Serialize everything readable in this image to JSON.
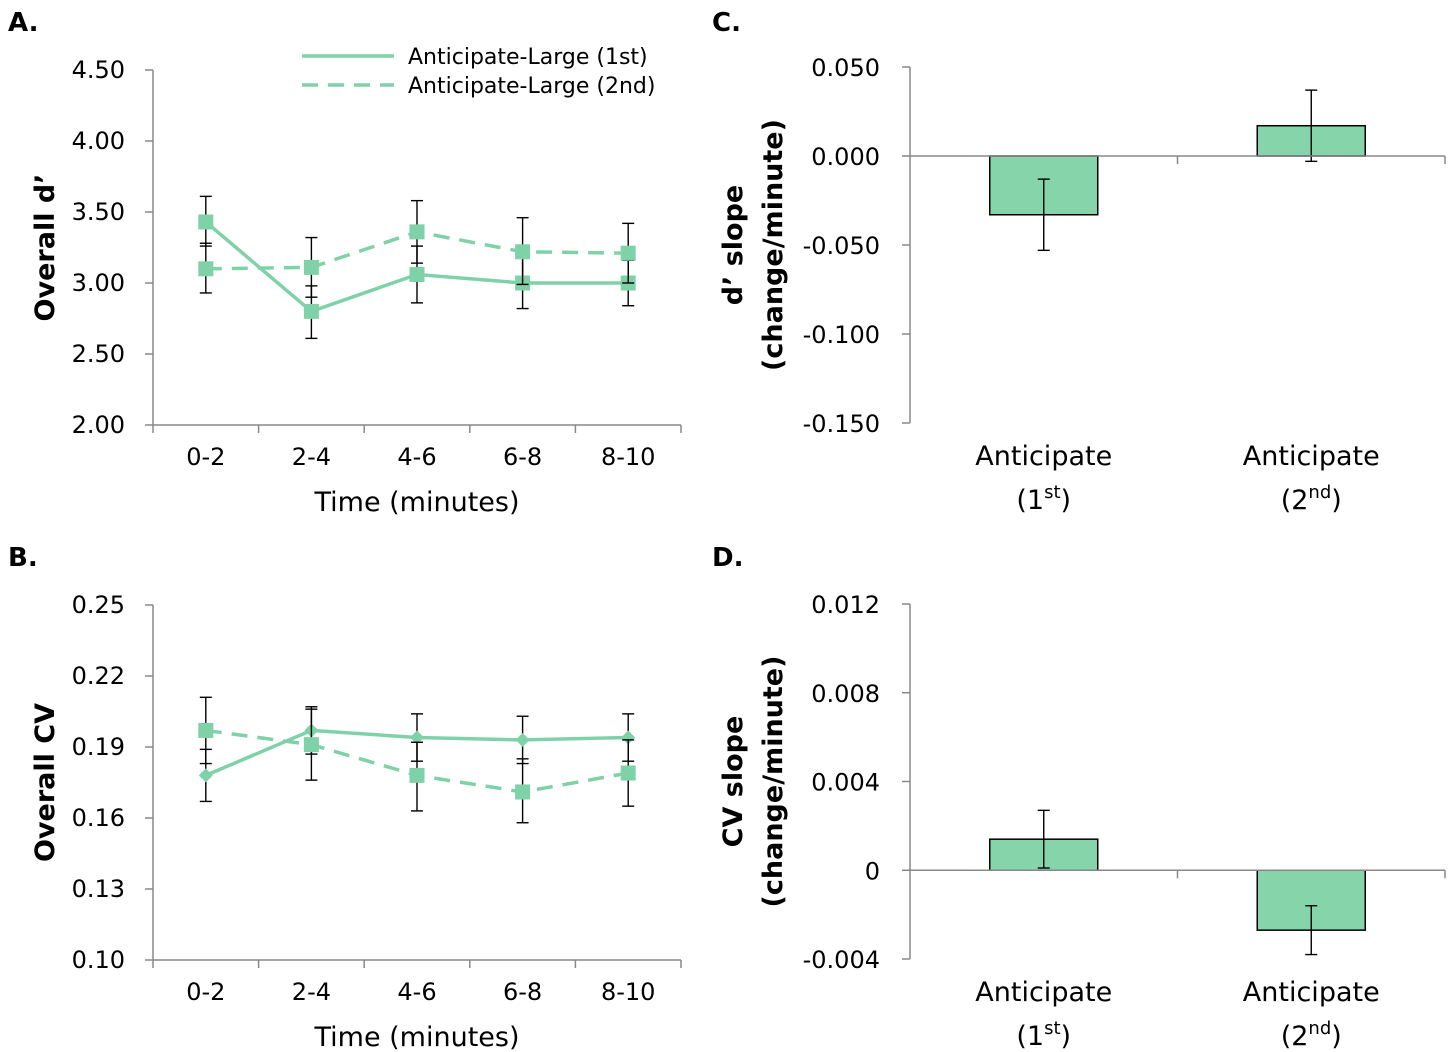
{
  "panels": {
    "a": "A.",
    "b": "B.",
    "c": "C.",
    "d": "D."
  },
  "colors": {
    "series": "#7fd1a8",
    "bar_fill": "#86d4aa",
    "axis": "#888888",
    "error": "#000000"
  },
  "chart_data": [
    {
      "id": "A",
      "type": "line",
      "categories": [
        "0-2",
        "2-4",
        "4-6",
        "6-8",
        "8-10"
      ],
      "xlabel": "Time (minutes)",
      "ylabel": "Overall d’",
      "ylim": [
        2.0,
        4.5
      ],
      "yticks": [
        "2.00",
        "2.50",
        "3.00",
        "3.50",
        "4.00",
        "4.50"
      ],
      "legend": "top-right",
      "series": [
        {
          "name": "Anticipate-Large (1st)",
          "dash": "solid",
          "marker": "square",
          "values": [
            3.43,
            2.8,
            3.06,
            3.0,
            3.0
          ],
          "err_low": [
            3.26,
            2.61,
            2.86,
            2.82,
            2.84
          ],
          "err_high": [
            3.61,
            2.98,
            3.26,
            3.18,
            3.16
          ]
        },
        {
          "name": "Anticipate-Large (2nd)",
          "dash": "dashed",
          "marker": "square",
          "values": [
            3.1,
            3.11,
            3.36,
            3.22,
            3.21
          ],
          "err_low": [
            2.93,
            2.9,
            3.14,
            2.99,
            3.0
          ],
          "err_high": [
            3.28,
            3.32,
            3.58,
            3.46,
            3.42
          ]
        }
      ]
    },
    {
      "id": "B",
      "type": "line",
      "categories": [
        "0-2",
        "2-4",
        "4-6",
        "6-8",
        "8-10"
      ],
      "xlabel": "Time (minutes)",
      "ylabel": "Overall CV",
      "ylim": [
        0.1,
        0.25
      ],
      "yticks": [
        "0.10",
        "0.13",
        "0.16",
        "0.19",
        "0.22",
        "0.25"
      ],
      "series": [
        {
          "name": "Anticipate-Large (1st)",
          "dash": "solid",
          "marker": "diamond",
          "values": [
            0.178,
            0.197,
            0.194,
            0.193,
            0.194
          ],
          "err_low": [
            0.167,
            0.187,
            0.184,
            0.183,
            0.184
          ],
          "err_high": [
            0.189,
            0.207,
            0.204,
            0.203,
            0.204
          ]
        },
        {
          "name": "Anticipate-Large (2nd)",
          "dash": "dashed",
          "marker": "square",
          "values": [
            0.197,
            0.191,
            0.178,
            0.171,
            0.179
          ],
          "err_low": [
            0.183,
            0.176,
            0.163,
            0.158,
            0.165
          ],
          "err_high": [
            0.211,
            0.206,
            0.192,
            0.185,
            0.193
          ]
        }
      ]
    },
    {
      "id": "C",
      "type": "bar",
      "ylabel_lines": [
        "d’ slope",
        "(change/minute)"
      ],
      "ylim": [
        -0.15,
        0.05
      ],
      "yticks": [
        "-0.150",
        "-0.100",
        "-0.050",
        "0.000",
        "0.050"
      ],
      "bars": [
        {
          "name": "Anticipate",
          "sup": "st",
          "num": "1",
          "value": -0.033,
          "err_low": -0.053,
          "err_high": -0.013
        },
        {
          "name": "Anticipate",
          "sup": "nd",
          "num": "2",
          "value": 0.017,
          "err_low": -0.003,
          "err_high": 0.037
        }
      ]
    },
    {
      "id": "D",
      "type": "bar",
      "ylabel_lines": [
        "CV slope",
        "(change/minute)"
      ],
      "ylim": [
        -0.004,
        0.012
      ],
      "yticks": [
        "-0.004",
        "0",
        "0.004",
        "0.008",
        "0.012"
      ],
      "bars": [
        {
          "name": "Anticipate",
          "sup": "st",
          "num": "1",
          "value": 0.0014,
          "err_low": 0.0001,
          "err_high": 0.0027
        },
        {
          "name": "Anticipate",
          "sup": "nd",
          "num": "2",
          "value": -0.0027,
          "err_low": -0.0038,
          "err_high": -0.0016
        }
      ]
    }
  ]
}
